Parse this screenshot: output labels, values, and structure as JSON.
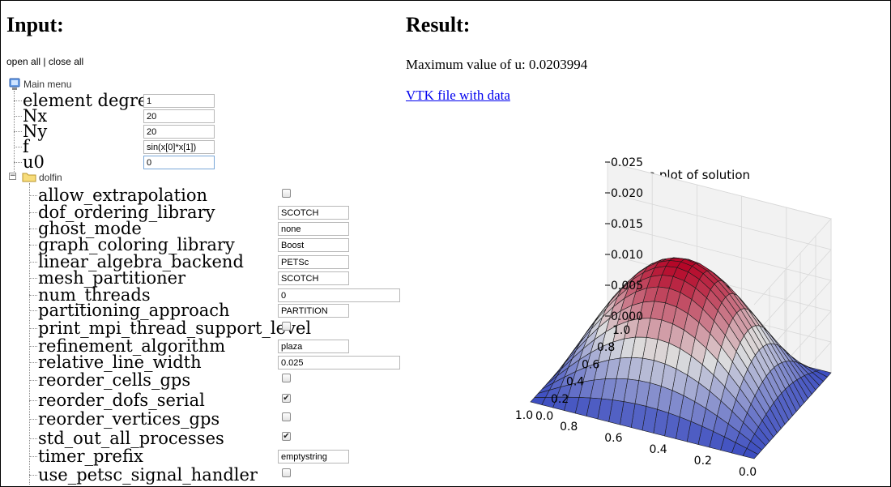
{
  "input_section": {
    "title": "Input:",
    "open_all": "open all",
    "separator": " | ",
    "close_all": "close all"
  },
  "tree": {
    "root_label": "Main menu",
    "main_params": [
      {
        "name": "element degree",
        "value": "1"
      },
      {
        "name": "Nx",
        "value": "20"
      },
      {
        "name": "Ny",
        "value": "20"
      },
      {
        "name": "f",
        "value": "sin(x[0]*x[1])"
      },
      {
        "name": "u0",
        "value": "0"
      }
    ],
    "folder_label": "dolfin",
    "folder_toggle": "−",
    "dolfin_params": [
      {
        "name": "allow_extrapolation",
        "type": "checkbox",
        "checked": false
      },
      {
        "name": "dof_ordering_library",
        "type": "text",
        "value": "SCOTCH"
      },
      {
        "name": "ghost_mode",
        "type": "text",
        "value": "none"
      },
      {
        "name": "graph_coloring_library",
        "type": "text",
        "value": "Boost"
      },
      {
        "name": "linear_algebra_backend",
        "type": "text",
        "value": "PETSc"
      },
      {
        "name": "mesh_partitioner",
        "type": "text",
        "value": "SCOTCH"
      },
      {
        "name": "num_threads",
        "type": "text",
        "value": "0"
      },
      {
        "name": "partitioning_approach",
        "type": "text",
        "value": "PARTITION"
      },
      {
        "name": "print_mpi_thread_support_level",
        "type": "checkbox",
        "checked": false
      },
      {
        "name": "refinement_algorithm",
        "type": "text",
        "value": "plaza"
      },
      {
        "name": "relative_line_width",
        "type": "text",
        "value": "0.025"
      },
      {
        "name": "reorder_cells_gps",
        "type": "checkbox",
        "checked": false
      },
      {
        "name": "reorder_dofs_serial",
        "type": "checkbox",
        "checked": true
      },
      {
        "name": "reorder_vertices_gps",
        "type": "checkbox",
        "checked": false
      },
      {
        "name": "std_out_all_processes",
        "type": "checkbox",
        "checked": true
      },
      {
        "name": "timer_prefix",
        "type": "text",
        "value": "emptystring"
      },
      {
        "name": "use_petsc_signal_handler",
        "type": "checkbox",
        "checked": false
      }
    ]
  },
  "result_section": {
    "title": "Result:",
    "max_value_text": "Maximum value of u: 0.0203994",
    "vtk_link": "VTK file with data"
  },
  "chart_data": {
    "type": "surface",
    "title": "Surface plot of solution",
    "x_ticks": [
      "0.0",
      "0.2",
      "0.4",
      "0.6",
      "0.8",
      "1.0"
    ],
    "y_ticks": [
      "0.0",
      "0.2",
      "0.4",
      "0.6",
      "0.8",
      "1.0"
    ],
    "z_ticks": [
      "0.000",
      "0.005",
      "0.010",
      "0.015",
      "0.020",
      "0.025"
    ],
    "xlim": [
      0,
      1
    ],
    "ylim": [
      0,
      1
    ],
    "zlim": [
      0,
      0.025
    ],
    "grid_n": 20,
    "z_max": 0.0203994,
    "colormap": "coolwarm",
    "low_color": "#3b4cc0",
    "mid_color": "#dddddd",
    "high_color": "#b40426"
  }
}
